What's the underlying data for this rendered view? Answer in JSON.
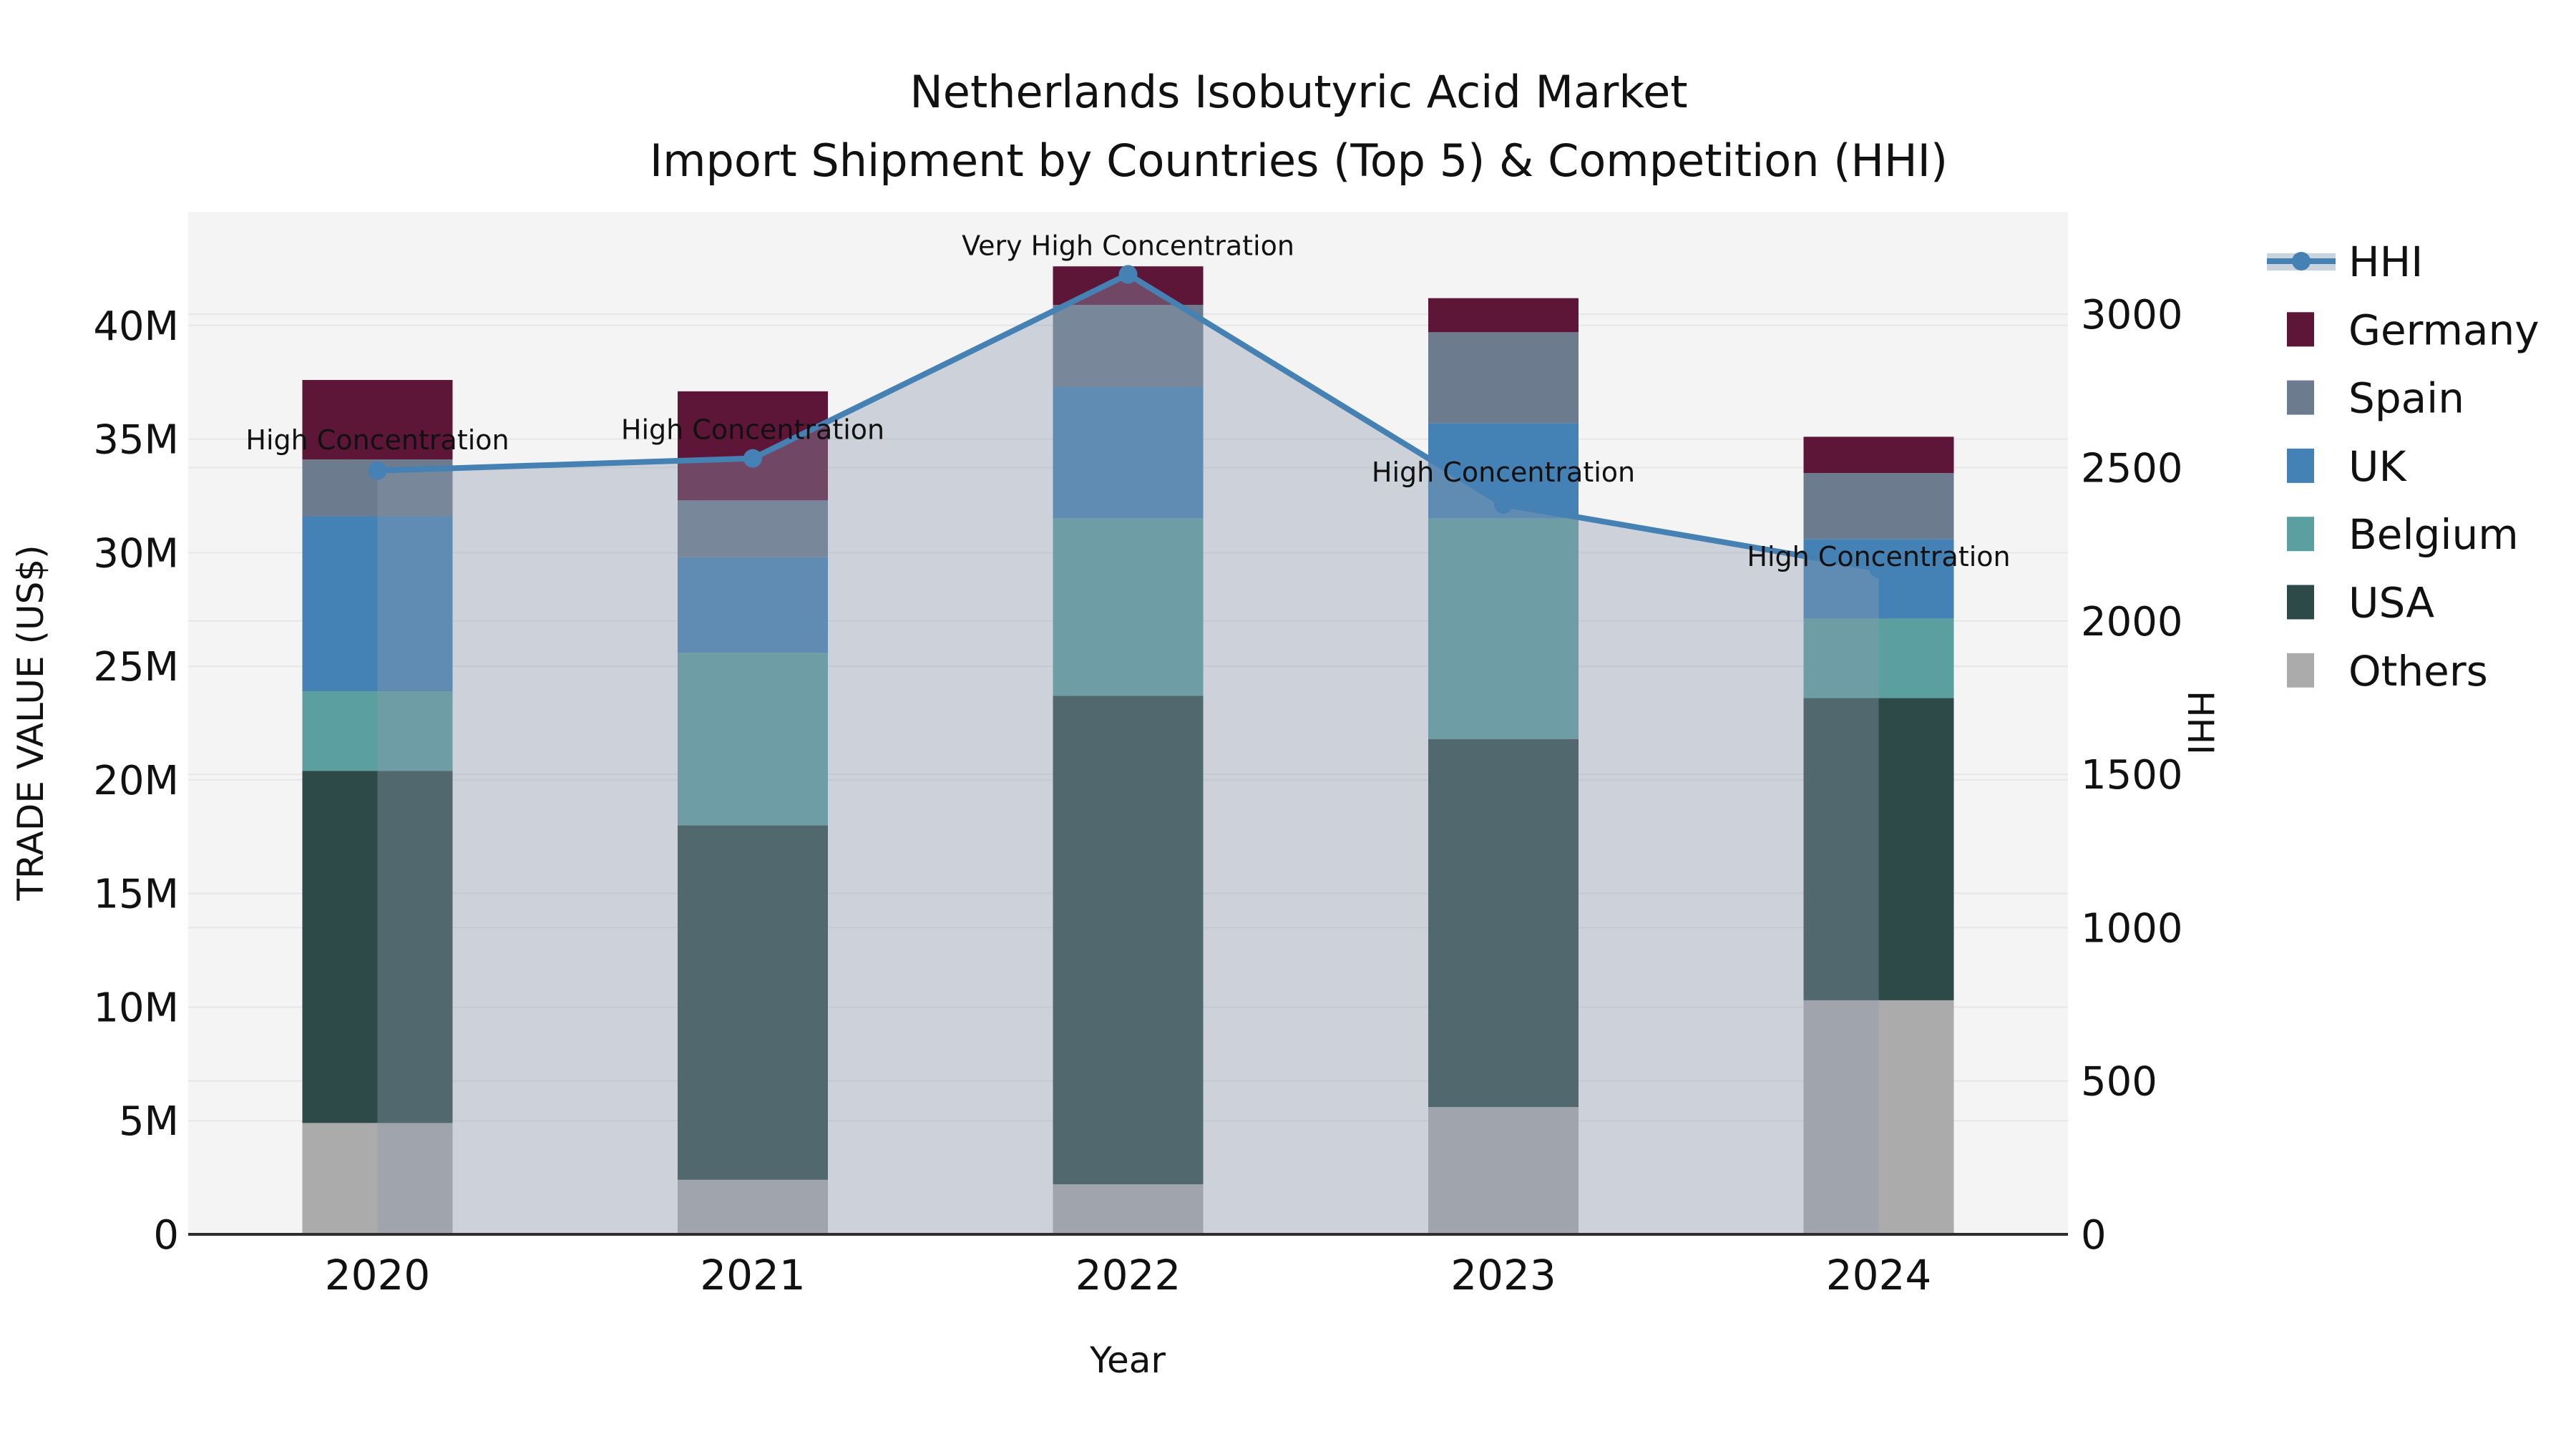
{
  "title": {
    "line1": "Netherlands Isobutyric Acid Market",
    "line2": "Import Shipment by Countries (Top 5) & Competition (HHI)"
  },
  "axes": {
    "left_title": "TRADE VALUE (US$)",
    "right_title": "HHI",
    "x_title": "Year",
    "left_ticks": [
      "0",
      "5M",
      "10M",
      "15M",
      "20M",
      "25M",
      "30M",
      "35M",
      "40M"
    ],
    "right_ticks": [
      "0",
      "500",
      "1000",
      "1500",
      "2000",
      "2500",
      "3000"
    ]
  },
  "legend": {
    "entries": [
      "HHI",
      "Germany",
      "Spain",
      "UK",
      "Belgium",
      "USA",
      "Others"
    ]
  },
  "colors": {
    "figure_bg": "#ffffff",
    "plot_bg": "#f4f4f4",
    "grid": "#e6e6e6",
    "axis_line": "#2e2e2e",
    "hhi_line": "#4681b4",
    "area_fill": "rgba(143,156,176,0.38)",
    "legend_area_swatch": "#c9d3de",
    "germany": "#5e1638",
    "spain": "#6c7b8d",
    "uk": "#4481b4",
    "belgium": "#5c9fa1",
    "usa": "#2e4a48",
    "others": "#ababab"
  },
  "chart_data": {
    "type": "bar+line",
    "title": "Netherlands Isobutyric Acid Market — Import Shipment by Countries (Top 5) & Competition (HHI)",
    "xlabel": "Year",
    "ylabel_left": "TRADE VALUE (US$)",
    "ylabel_right": "HHI",
    "categories": [
      "2020",
      "2021",
      "2022",
      "2023",
      "2024"
    ],
    "series": [
      {
        "name": "Others",
        "color_key": "others",
        "values": [
          4900000,
          2400000,
          2200000,
          5600000,
          10300000
        ]
      },
      {
        "name": "USA",
        "color_key": "usa",
        "values": [
          15500000,
          15600000,
          21500000,
          16200000,
          13300000
        ]
      },
      {
        "name": "Belgium",
        "color_key": "belgium",
        "values": [
          3500000,
          7600000,
          7800000,
          9700000,
          3500000
        ]
      },
      {
        "name": "UK",
        "color_key": "uk",
        "values": [
          7700000,
          4200000,
          5800000,
          4200000,
          3500000
        ]
      },
      {
        "name": "Spain",
        "color_key": "spain",
        "values": [
          2500000,
          2500000,
          3600000,
          4000000,
          2900000
        ]
      },
      {
        "name": "Germany",
        "color_key": "germany",
        "values": [
          3500000,
          4800000,
          1700000,
          1500000,
          1600000
        ]
      }
    ],
    "hhi": {
      "name": "HHI",
      "values": [
        2490,
        2530,
        3130,
        2380,
        2170
      ],
      "annotations": [
        "High Concentration",
        "High Concentration",
        "Very High Concentration",
        "High Concentration",
        "High Concentration"
      ],
      "annotation_dy": [
        -43,
        -40,
        -40,
        -45,
        -17
      ]
    },
    "left_axis": {
      "max": 45000000,
      "tick_step": 5000000
    },
    "right_axis": {
      "max": 3334,
      "tick_step": 500
    },
    "legend_position": "right",
    "grid": true
  }
}
